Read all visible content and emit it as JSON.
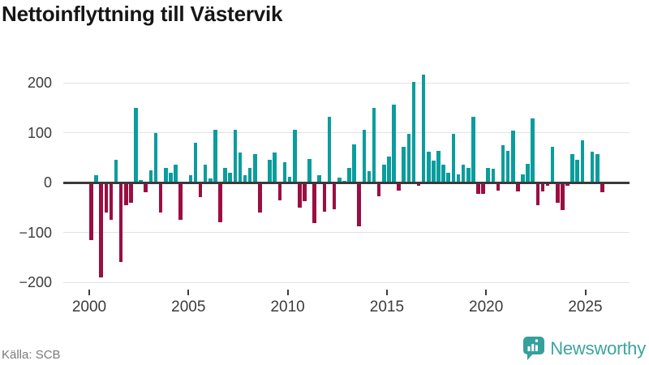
{
  "title": "Nettoinflyttning till Västervik",
  "source": "Källa: SCB",
  "logo": {
    "text": "Newsworthy"
  },
  "chart_data": {
    "type": "bar",
    "title": "Nettoinflyttning till Västervik",
    "frequency": "quarterly",
    "start_period": "2000Q1",
    "end_period": "2025Q4",
    "xlabel": "",
    "ylabel": "",
    "ylim": [
      -215,
      235
    ],
    "grid": true,
    "legend_position": "none",
    "y_ticks": [
      200,
      100,
      0,
      -100,
      -200
    ],
    "y_tick_labels": [
      "200",
      "100",
      "0",
      "−100",
      "−200"
    ],
    "x_tick_years": [
      2000,
      2005,
      2010,
      2015,
      2020,
      2025
    ],
    "x_tick_labels": [
      "2000",
      "2005",
      "2010",
      "2015",
      "2020",
      "2025"
    ],
    "colors": {
      "positive": "#0a9d9e",
      "negative": "#9b0e42",
      "axis": "#3a3a3a",
      "gridline": "#e2e2e2"
    },
    "values": [
      -115,
      15,
      -190,
      -60,
      -75,
      45,
      -160,
      -45,
      -40,
      150,
      5,
      -20,
      25,
      100,
      -60,
      30,
      20,
      35,
      -75,
      2,
      15,
      80,
      -30,
      35,
      8,
      105,
      -80,
      30,
      20,
      105,
      60,
      15,
      30,
      57,
      -60,
      2,
      45,
      60,
      -35,
      41,
      11,
      105,
      -51,
      -38,
      47,
      -81,
      14,
      -59,
      131,
      -54,
      9,
      3,
      30,
      76,
      -87,
      105,
      23,
      150,
      -27,
      35,
      52,
      156,
      -16,
      72,
      97,
      202,
      -6,
      217,
      62,
      44,
      63,
      35,
      19,
      97,
      17,
      35,
      30,
      131,
      -22,
      -23,
      29,
      27,
      -17,
      75,
      63,
      104,
      -18,
      16,
      37,
      128,
      -46,
      -18,
      -7,
      72,
      -41,
      -55,
      -7,
      57,
      45,
      85,
      2,
      61,
      57,
      -20
    ]
  }
}
